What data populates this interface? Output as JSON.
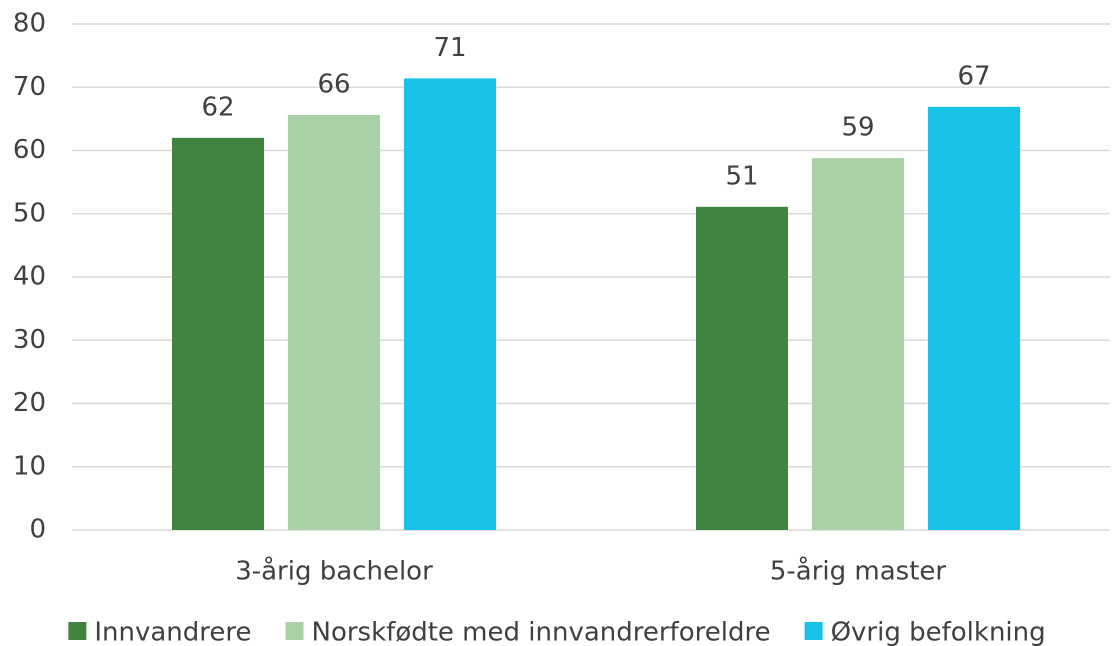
{
  "chart_data": {
    "type": "bar",
    "categories": [
      "3-årig bachelor",
      "5-årig master"
    ],
    "series": [
      {
        "name": "Innvandrere",
        "color": "#41843f",
        "values": [
          62,
          51.1
        ],
        "value_labels": [
          "62",
          "51"
        ]
      },
      {
        "name": "Norskfødte med innvandrerforeldre",
        "color": "#a8d1a6",
        "values": [
          65.6,
          58.8
        ],
        "value_labels": [
          "66",
          "59"
        ]
      },
      {
        "name": "Øvrig befolkning",
        "color": "#17c2e6",
        "values": [
          71.4,
          66.9
        ],
        "value_labels": [
          "71",
          "67"
        ]
      }
    ],
    "ylim": [
      0,
      80
    ],
    "yticks": [
      0,
      10,
      20,
      30,
      40,
      50,
      60,
      70,
      80
    ],
    "grid": true,
    "legend": "bottom"
  }
}
